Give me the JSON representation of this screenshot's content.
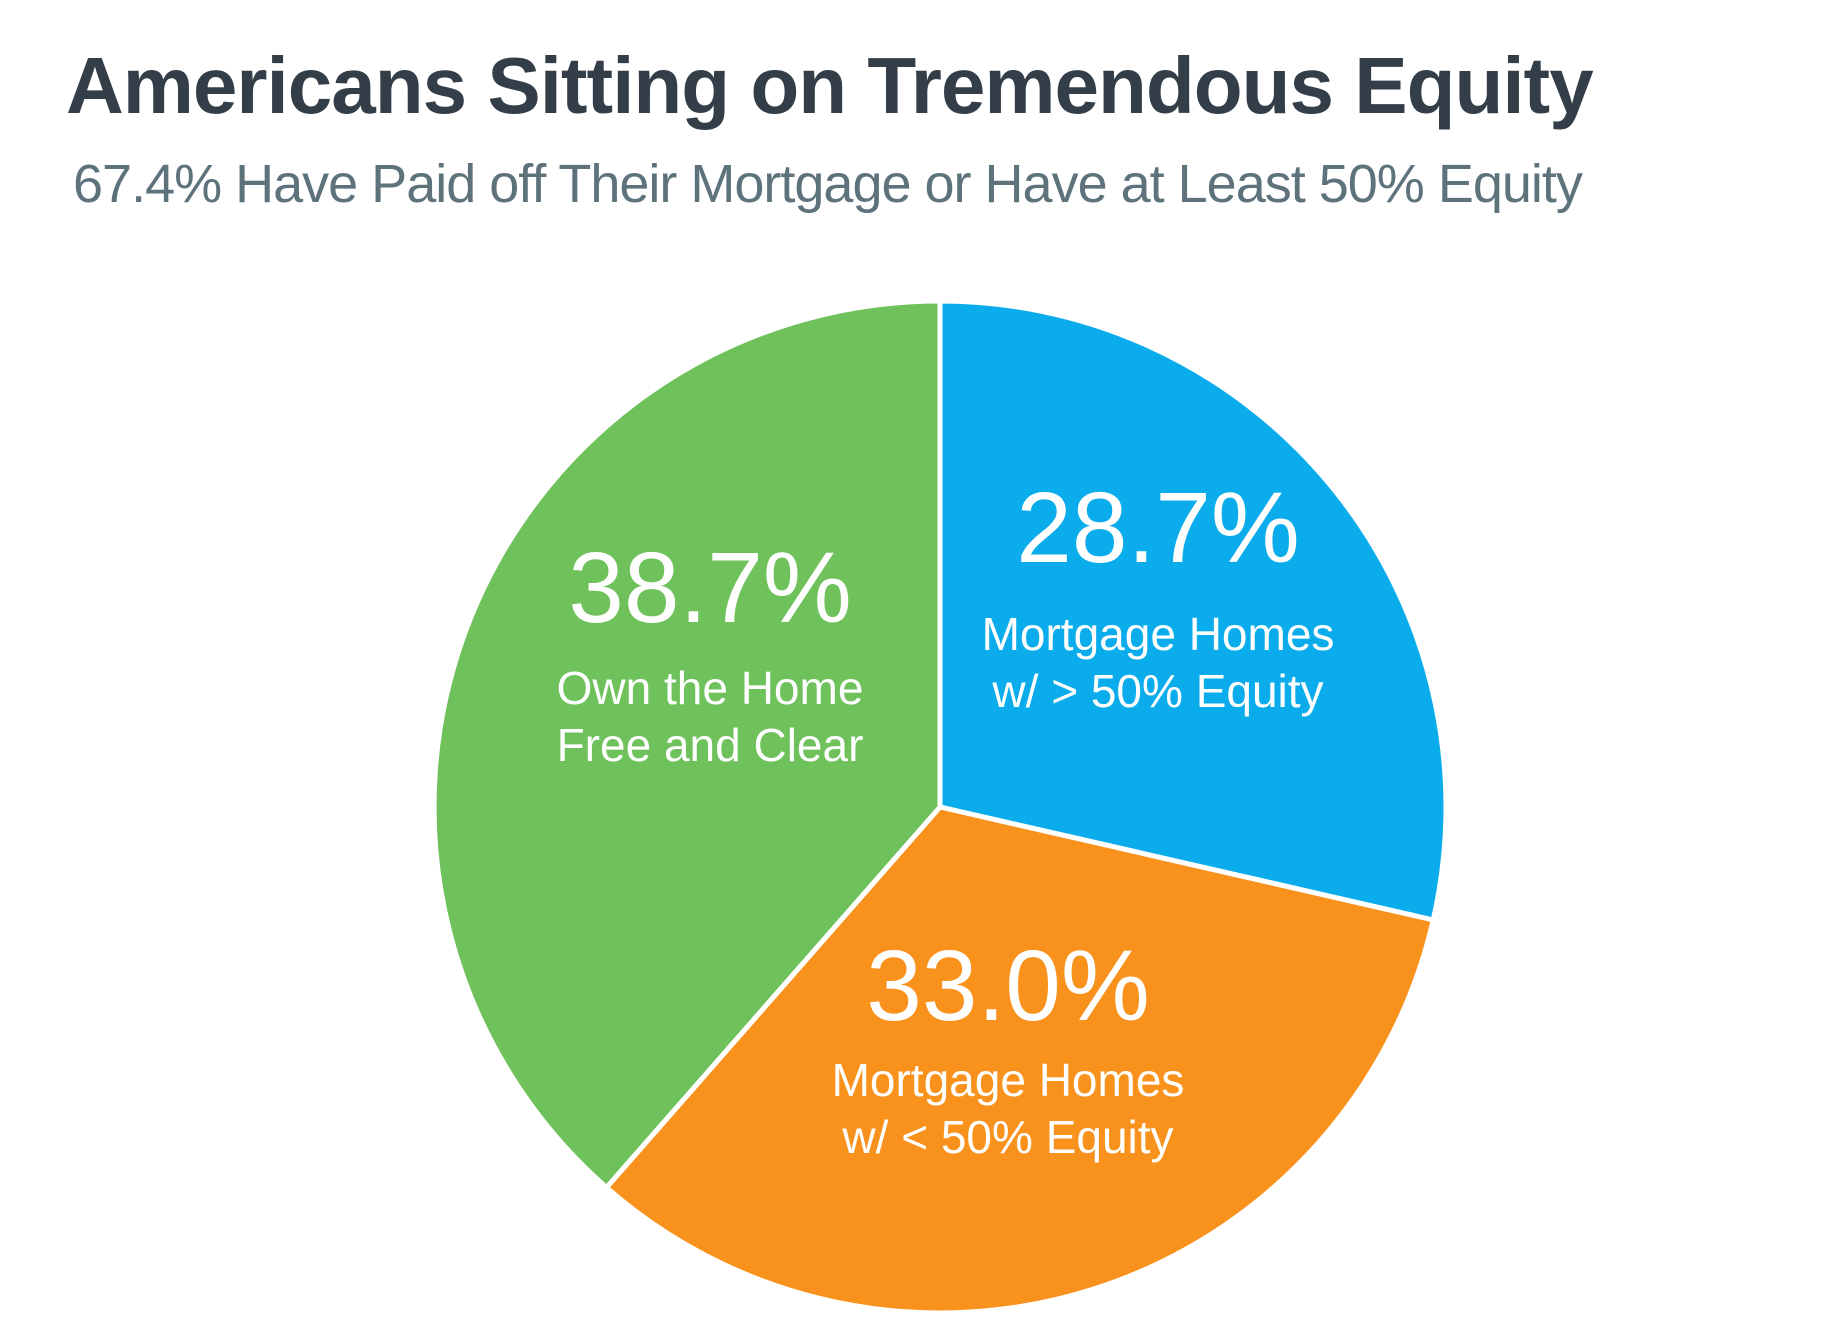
{
  "header": {
    "title": "Americans Sitting on Tremendous Equity",
    "subtitle": "67.4% Have Paid off Their Mortgage or Have at Least 50% Equity"
  },
  "colors": {
    "title_text": "#333E48",
    "subtitle_text": "#5E727C",
    "slice_divider": "#FFFFFF",
    "label_text": "#FFFFFF",
    "blue": "#0AACEC",
    "orange": "#F8921D",
    "green": "#6EC15B"
  },
  "chart_data": {
    "type": "pie",
    "title": "Americans Sitting on Tremendous Equity",
    "subtitle": "67.4% Have Paid off Their Mortgage or Have at Least 50% Equity",
    "start_angle_deg": 0,
    "direction": "clockwise",
    "legend": "none",
    "labels_position": "inside-slices",
    "slices": [
      {
        "name": "mortgage-homes-gt-50-equity",
        "value_pct": 28.7,
        "value_text": "28.7%",
        "label_lines": [
          "Mortgage Homes",
          "w/ > 50% Equity"
        ],
        "color": "#0AACEC"
      },
      {
        "name": "mortgage-homes-lt-50-equity",
        "value_pct": 33.0,
        "value_text": "33.0%",
        "label_lines": [
          "Mortgage Homes",
          "w/ < 50% Equity"
        ],
        "color": "#F8921D"
      },
      {
        "name": "own-home-free-and-clear",
        "value_pct": 38.7,
        "value_text": "38.7%",
        "label_lines": [
          "Own the Home",
          "Free and Clear"
        ],
        "color": "#6EC15B"
      }
    ]
  }
}
